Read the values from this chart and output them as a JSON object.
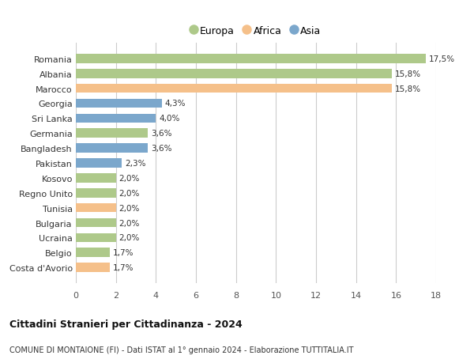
{
  "countries": [
    "Romania",
    "Albania",
    "Marocco",
    "Georgia",
    "Sri Lanka",
    "Germania",
    "Bangladesh",
    "Pakistan",
    "Kosovo",
    "Regno Unito",
    "Tunisia",
    "Bulgaria",
    "Ucraina",
    "Belgio",
    "Costa d'Avorio"
  ],
  "values": [
    17.5,
    15.8,
    15.8,
    4.3,
    4.0,
    3.6,
    3.6,
    2.3,
    2.0,
    2.0,
    2.0,
    2.0,
    2.0,
    1.7,
    1.7
  ],
  "labels": [
    "17,5%",
    "15,8%",
    "15,8%",
    "4,3%",
    "4,0%",
    "3,6%",
    "3,6%",
    "2,3%",
    "2,0%",
    "2,0%",
    "2,0%",
    "2,0%",
    "2,0%",
    "1,7%",
    "1,7%"
  ],
  "continents": [
    "Europa",
    "Europa",
    "Africa",
    "Asia",
    "Asia",
    "Europa",
    "Asia",
    "Asia",
    "Europa",
    "Europa",
    "Africa",
    "Europa",
    "Europa",
    "Europa",
    "Africa"
  ],
  "colors": {
    "Europa": "#aec98a",
    "Africa": "#f5c08a",
    "Asia": "#7ba7cc"
  },
  "xlim": [
    0,
    18
  ],
  "xticks": [
    0,
    2,
    4,
    6,
    8,
    10,
    12,
    14,
    16,
    18
  ],
  "title": "Cittadini Stranieri per Cittadinanza - 2024",
  "subtitle": "COMUNE DI MONTAIONE (FI) - Dati ISTAT al 1° gennaio 2024 - Elaborazione TUTTITALIA.IT",
  "bg_color": "#ffffff",
  "grid_color": "#cccccc",
  "bar_height": 0.62
}
